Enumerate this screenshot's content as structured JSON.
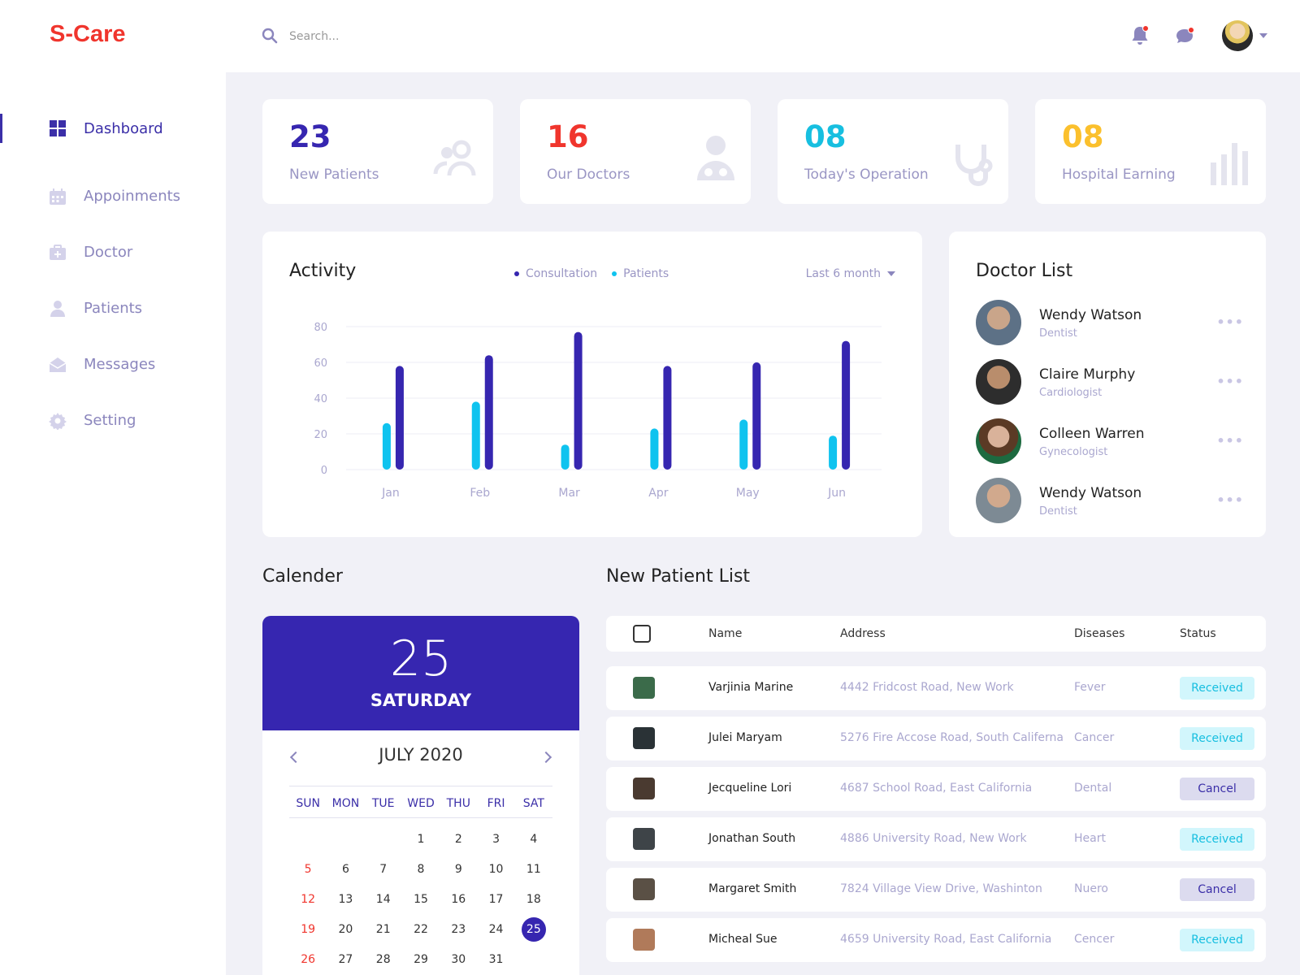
{
  "brand": {
    "logo": "S-Care"
  },
  "nav": [
    {
      "label": "Dashboard",
      "icon": "grid-icon",
      "active": true
    },
    {
      "label": "Appoinments",
      "icon": "calendar-icon"
    },
    {
      "label": "Doctor",
      "icon": "medical-kit-icon"
    },
    {
      "label": "Patients",
      "icon": "person-icon"
    },
    {
      "label": "Messages",
      "icon": "envelope-icon"
    },
    {
      "label": "Setting",
      "icon": "gear-icon"
    }
  ],
  "search": {
    "placeholder": "Search..."
  },
  "stats": [
    {
      "value": "23",
      "label": "New Patients",
      "color": "#3626b0",
      "icon": "users-icon"
    },
    {
      "value": "16",
      "label": "Our Doctors",
      "color": "#f0352d",
      "icon": "doctor-icon"
    },
    {
      "value": "08",
      "label": "Today's Operation",
      "color": "#17bfe0",
      "icon": "stethoscope-icon"
    },
    {
      "value": "08",
      "label": "Hospital Earning",
      "color": "#fbc02d",
      "icon": "bar-chart-icon"
    }
  ],
  "activity": {
    "title": "Activity",
    "period": "Last 6 month"
  },
  "chart_data": {
    "type": "bar",
    "categories": [
      "Jan",
      "Feb",
      "Mar",
      "Apr",
      "May",
      "Jun"
    ],
    "series": [
      {
        "name": "Patients",
        "color": "#0fc3ef",
        "values": [
          26,
          38,
          14,
          23,
          28,
          19
        ]
      },
      {
        "name": "Consultation",
        "color": "#3626b0",
        "values": [
          58,
          64,
          77,
          58,
          60,
          72
        ]
      }
    ],
    "legend": [
      "Consultation",
      "Patients"
    ],
    "legend_colors": [
      "#3626b0",
      "#0fc3ef"
    ],
    "yticks": [
      0,
      20,
      40,
      60,
      80
    ],
    "ylim": [
      0,
      80
    ],
    "grid": true
  },
  "doctor_list": {
    "title": "Doctor List",
    "items": [
      {
        "name": "Wendy Watson",
        "role": "Dentist"
      },
      {
        "name": "Claire Murphy",
        "role": "Cardiologist"
      },
      {
        "name": "Colleen Warren",
        "role": "Gynecologist"
      },
      {
        "name": "Wendy Watson",
        "role": "Dentist"
      }
    ]
  },
  "calendar": {
    "title": "Calender",
    "day": "25",
    "weekday": "SATURDAY",
    "month": "JULY 2020",
    "weekdays": [
      "SUN",
      "MON",
      "TUE",
      "WED",
      "THU",
      "FRI",
      "SAT"
    ],
    "first_weekday_index": 3,
    "days_shown": 31,
    "selected": 25
  },
  "patients": {
    "title": "New Patient List",
    "columns": {
      "name": "Name",
      "address": "Address",
      "diseases": "Diseases",
      "status": "Status"
    },
    "rows": [
      {
        "name": "Varjinia Marine",
        "address": "4442 Fridcost Road, New Work",
        "disease": "Fever",
        "status": "Received"
      },
      {
        "name": "Julei Maryam",
        "address": "5276 Fire Accose Road, South Califerna",
        "disease": "Cancer",
        "status": "Received"
      },
      {
        "name": "Jecqueline Lori",
        "address": "4687 School Road, East California",
        "disease": "Dental",
        "status": "Cancel"
      },
      {
        "name": "Jonathan South",
        "address": "4886 University Road, New Work",
        "disease": "Heart",
        "status": "Received"
      },
      {
        "name": "Margaret Smith",
        "address": "7824 Village View Drive, Washinton",
        "disease": "Nuero",
        "status": "Cancel"
      },
      {
        "name": "Micheal Sue",
        "address": "4659 University Road, East California",
        "disease": "Cencer",
        "status": "Received"
      }
    ]
  }
}
